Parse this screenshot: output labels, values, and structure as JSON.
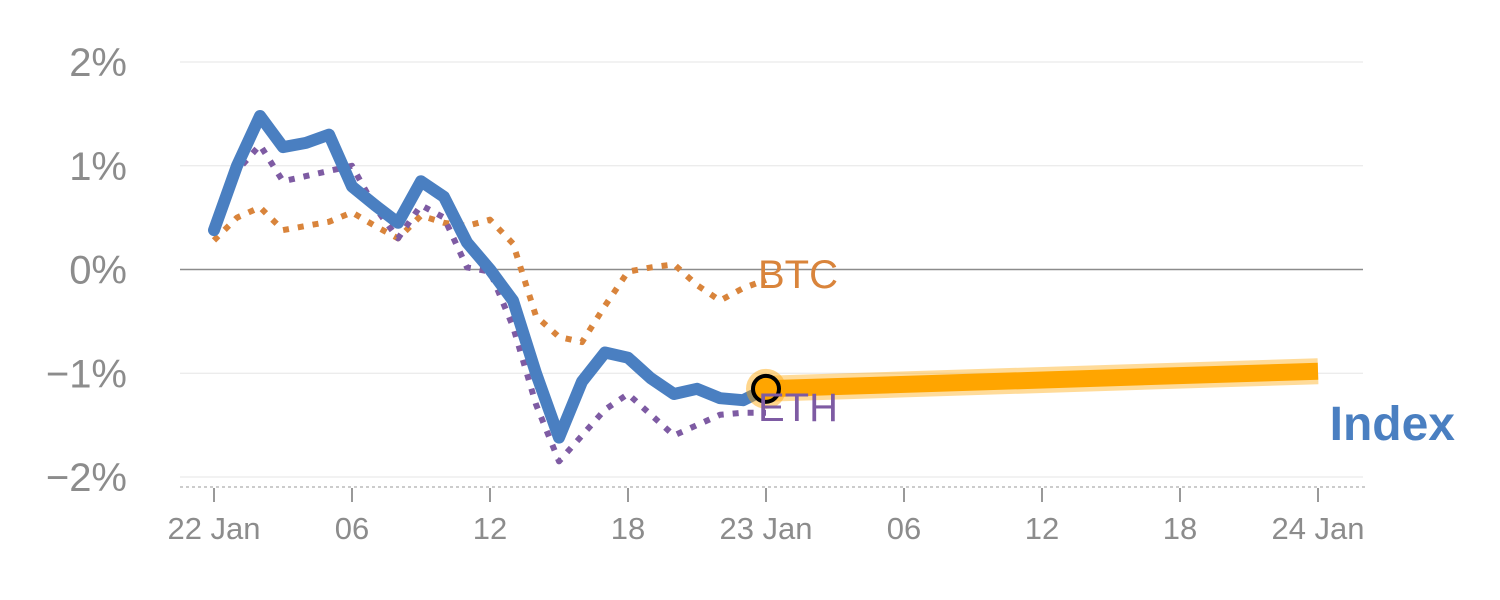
{
  "chart_data": {
    "type": "line",
    "x_axis": {
      "type": "time",
      "range": [
        "2022-01-22 00:00",
        "2022-01-24 00:00"
      ],
      "tick_labels": [
        "22 Jan",
        "06",
        "12",
        "18",
        "23 Jan",
        "06",
        "12",
        "18",
        "24 Jan"
      ]
    },
    "y_axis": {
      "range": [
        -2,
        2
      ],
      "unit": "%",
      "tick_labels": [
        "2%",
        "1%",
        "0%",
        "−1%",
        "−2%"
      ],
      "grid": true
    },
    "series": [
      {
        "name": "BTC",
        "style": "dotted",
        "color": "#d9843b",
        "x": [
          "2022-01-22 00:00",
          "2022-01-22 01:00",
          "2022-01-22 02:00",
          "2022-01-22 03:00",
          "2022-01-22 04:00",
          "2022-01-22 05:00",
          "2022-01-22 06:00",
          "2022-01-22 07:00",
          "2022-01-22 08:00",
          "2022-01-22 09:00",
          "2022-01-22 10:00",
          "2022-01-22 11:00",
          "2022-01-22 12:00",
          "2022-01-22 13:00",
          "2022-01-22 14:00",
          "2022-01-22 15:00",
          "2022-01-22 16:00",
          "2022-01-22 17:00",
          "2022-01-22 18:00",
          "2022-01-22 19:00",
          "2022-01-22 20:00",
          "2022-01-22 21:00",
          "2022-01-22 22:00",
          "2022-01-22 23:00",
          "2022-01-23 00:00"
        ],
        "y": [
          0.28,
          0.5,
          0.6,
          0.38,
          0.42,
          0.46,
          0.55,
          0.42,
          0.3,
          0.52,
          0.45,
          0.42,
          0.48,
          0.25,
          -0.45,
          -0.65,
          -0.7,
          -0.35,
          -0.02,
          0.02,
          0.05,
          -0.15,
          -0.3,
          -0.18,
          -0.1
        ]
      },
      {
        "name": "ETH",
        "style": "dotted",
        "color": "#7e5ba3",
        "x": [
          "2022-01-22 00:00",
          "2022-01-22 01:00",
          "2022-01-22 02:00",
          "2022-01-22 03:00",
          "2022-01-22 04:00",
          "2022-01-22 05:00",
          "2022-01-22 06:00",
          "2022-01-22 07:00",
          "2022-01-22 08:00",
          "2022-01-22 09:00",
          "2022-01-22 10:00",
          "2022-01-22 11:00",
          "2022-01-22 12:00",
          "2022-01-22 13:00",
          "2022-01-22 14:00",
          "2022-01-22 15:00",
          "2022-01-22 16:00",
          "2022-01-22 17:00",
          "2022-01-22 18:00",
          "2022-01-22 19:00",
          "2022-01-22 20:00",
          "2022-01-22 21:00",
          "2022-01-22 22:00",
          "2022-01-22 23:00",
          "2022-01-23 00:00"
        ],
        "y": [
          0.35,
          0.95,
          1.2,
          0.85,
          0.9,
          0.95,
          1.0,
          0.6,
          0.3,
          0.62,
          0.5,
          0.02,
          -0.02,
          -0.55,
          -1.3,
          -1.85,
          -1.6,
          -1.35,
          -1.2,
          -1.4,
          -1.6,
          -1.5,
          -1.4,
          -1.38,
          -1.38
        ]
      },
      {
        "name": "Index",
        "style": "solid",
        "color": "#4a7fc1",
        "x": [
          "2022-01-22 00:00",
          "2022-01-22 01:00",
          "2022-01-22 02:00",
          "2022-01-22 03:00",
          "2022-01-22 04:00",
          "2022-01-22 05:00",
          "2022-01-22 06:00",
          "2022-01-22 07:00",
          "2022-01-22 08:00",
          "2022-01-22 09:00",
          "2022-01-22 10:00",
          "2022-01-22 11:00",
          "2022-01-22 12:00",
          "2022-01-22 13:00",
          "2022-01-22 14:00",
          "2022-01-22 15:00",
          "2022-01-22 16:00",
          "2022-01-22 17:00",
          "2022-01-22 18:00",
          "2022-01-22 19:00",
          "2022-01-22 20:00",
          "2022-01-22 21:00",
          "2022-01-22 22:00",
          "2022-01-22 23:00",
          "2022-01-23 00:00"
        ],
        "y": [
          0.38,
          1.0,
          1.48,
          1.18,
          1.22,
          1.3,
          0.8,
          0.62,
          0.45,
          0.85,
          0.7,
          0.26,
          0.0,
          -0.3,
          -1.0,
          -1.62,
          -1.08,
          -0.8,
          -0.85,
          -1.05,
          -1.2,
          -1.15,
          -1.24,
          -1.26,
          -1.15
        ]
      },
      {
        "name": "Index projection",
        "style": "thick-highlight",
        "color": "#ffa500",
        "x": [
          "2022-01-23 00:00",
          "2022-01-24 00:00"
        ],
        "y": [
          -1.15,
          -0.98
        ]
      }
    ],
    "marker": {
      "x": "2022-01-23 00:00",
      "y": -1.15,
      "fill": "#ffa500",
      "stroke": "#000000"
    },
    "label_text": {
      "btc": "BTC",
      "eth": "ETH",
      "index": "Index"
    },
    "colors": {
      "grid": "#e6e6e6",
      "zero_line": "#8c8c8c",
      "tick_text": "#8c8c8c",
      "axis_line": "#cccccc"
    }
  }
}
